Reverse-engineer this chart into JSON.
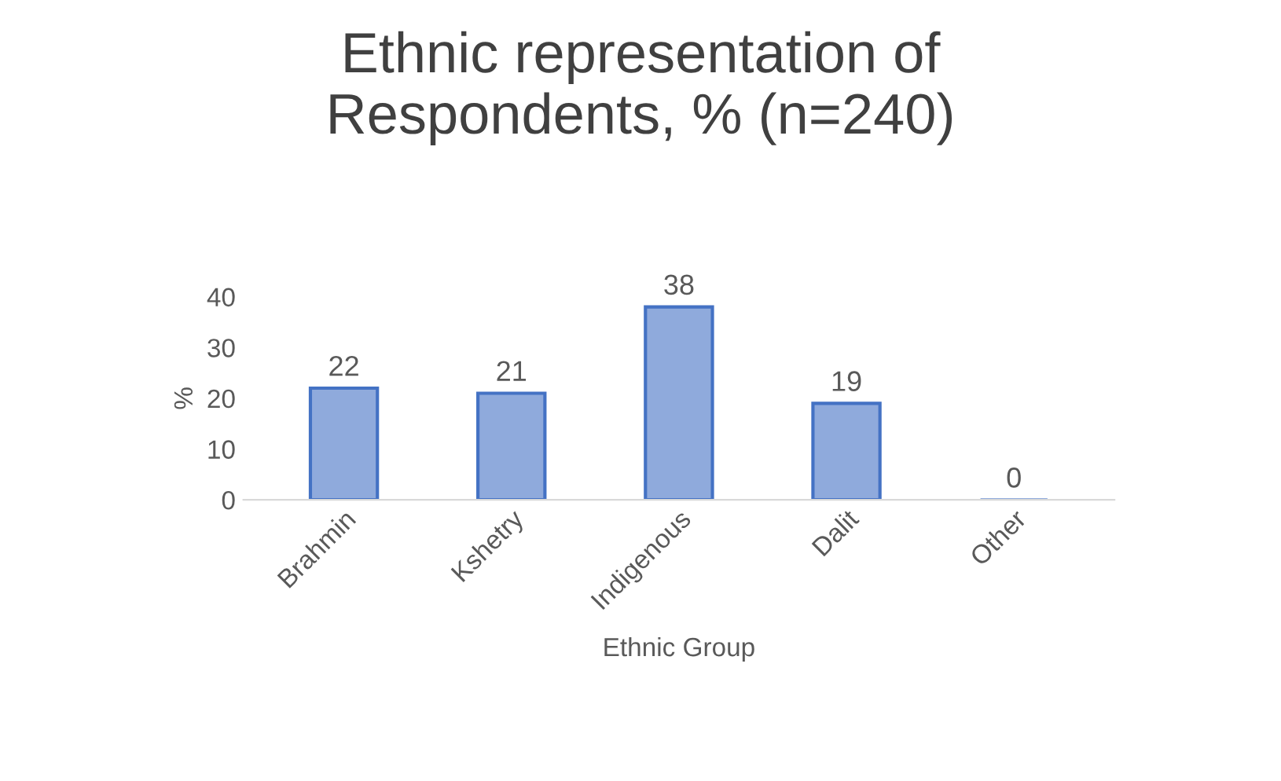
{
  "chart_data": {
    "type": "bar",
    "title": "Ethnic representation of\nRespondents, % (n=240)",
    "xlabel": "Ethnic Group",
    "ylabel": "%",
    "categories": [
      "Brahmin",
      "Kshetry",
      "Indigenous",
      "Dalit",
      "Other"
    ],
    "values": [
      22,
      21,
      38,
      19,
      0
    ],
    "color": "#8faadc",
    "ylim": [
      0,
      40
    ],
    "yticks": [
      0,
      10,
      20,
      30,
      40
    ],
    "grid": false,
    "data_labels": true
  }
}
